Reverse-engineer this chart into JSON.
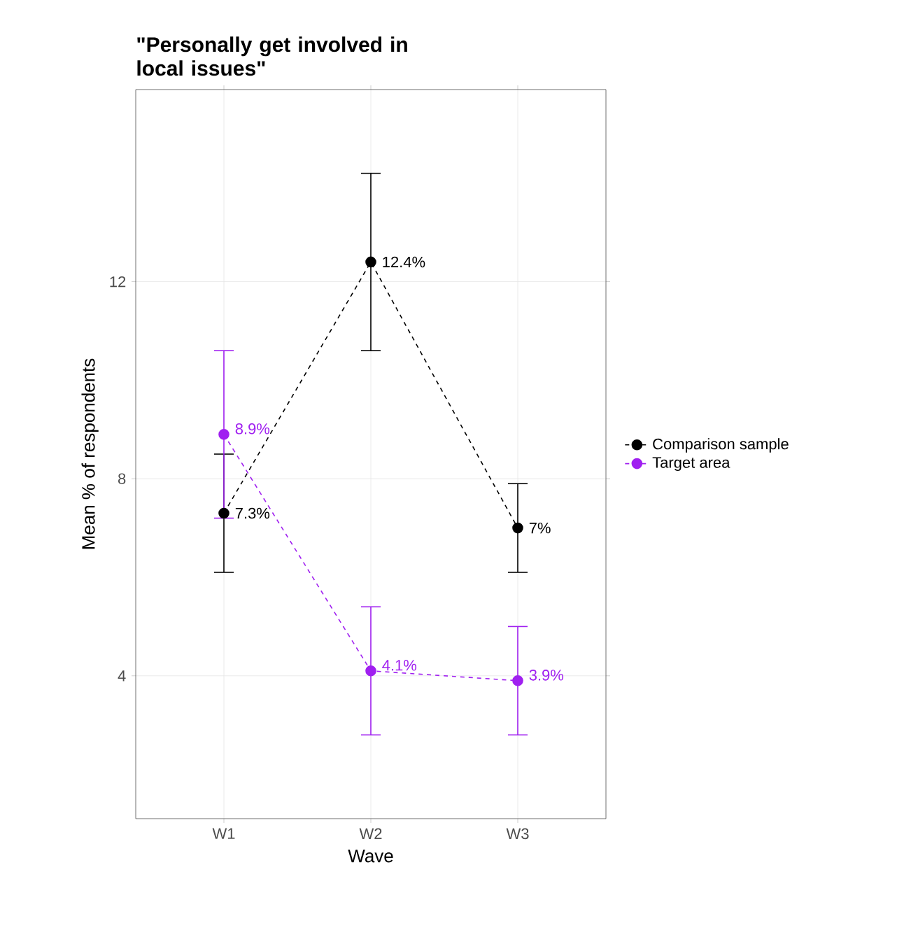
{
  "chart_data": {
    "type": "line",
    "title": "\"Personally get involved in local issues\"",
    "xlabel": "Wave",
    "ylabel": "Mean % of respondents",
    "categories": [
      "W1",
      "W2",
      "W3"
    ],
    "series": [
      {
        "name": "Comparison sample",
        "color": "#000000",
        "values": [
          7.3,
          12.4,
          7
        ],
        "errors": [
          [
            6.1,
            8.5
          ],
          [
            10.6,
            14.2
          ],
          [
            6.1,
            7.9
          ]
        ],
        "value_labels": [
          "7.3%",
          "12.4%",
          "7%"
        ]
      },
      {
        "name": "Target area",
        "color": "#a020f0",
        "values": [
          8.9,
          4.1,
          3.9
        ],
        "errors": [
          [
            7.2,
            10.6
          ],
          [
            2.8,
            5.4
          ],
          [
            2.8,
            5.0
          ]
        ],
        "value_labels": [
          "8.9%",
          "4.1%",
          "3.9%"
        ]
      }
    ],
    "ylim": [
      1.1,
      15.9
    ],
    "yticks": [
      4,
      8,
      12
    ],
    "grid": true,
    "legend": "right",
    "marker": "circle",
    "line_style": "dashed"
  }
}
